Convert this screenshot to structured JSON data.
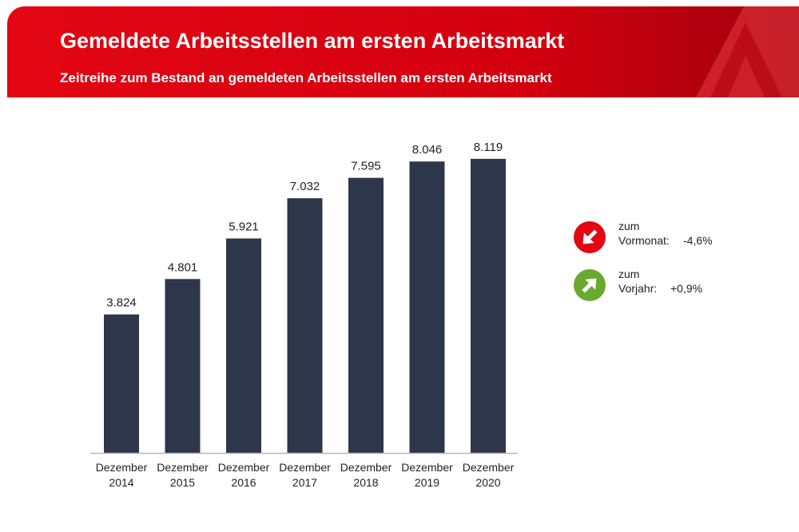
{
  "header": {
    "title": "Gemeldete Arbeitsstellen am ersten Arbeitsmarkt",
    "subtitle": "Zeitreihe zum Bestand an gemeldeten Arbeitsstellen am ersten Arbeitsmarkt",
    "color_left": "#e30613",
    "color_right": "#a0000d"
  },
  "chart_data": {
    "type": "bar",
    "categories": [
      [
        "Dezember",
        "2014"
      ],
      [
        "Dezember",
        "2015"
      ],
      [
        "Dezember",
        "2016"
      ],
      [
        "Dezember",
        "2017"
      ],
      [
        "Dezember",
        "2018"
      ],
      [
        "Dezember",
        "2019"
      ],
      [
        "Dezember",
        "2020"
      ]
    ],
    "values": [
      3824,
      4801,
      5921,
      7032,
      7595,
      8046,
      8119
    ],
    "value_labels": [
      "3.824",
      "4.801",
      "5.921",
      "7.032",
      "7.595",
      "8.046",
      "8.119"
    ],
    "title": "",
    "xlabel": "",
    "ylabel": "",
    "ylim": [
      0,
      8800
    ],
    "grid": false,
    "bar_color": "#2e364b"
  },
  "changes": {
    "vormonat": {
      "word": "zum",
      "label": "Vormonat:",
      "value": "-4,6%",
      "color": "#e30613",
      "icon": "arrow-down-right-icon"
    },
    "vorjahr": {
      "word": "zum",
      "label": "Vorjahr:",
      "value": "+0,9%",
      "color": "#6aa92f",
      "icon": "arrow-up-right-icon"
    }
  }
}
